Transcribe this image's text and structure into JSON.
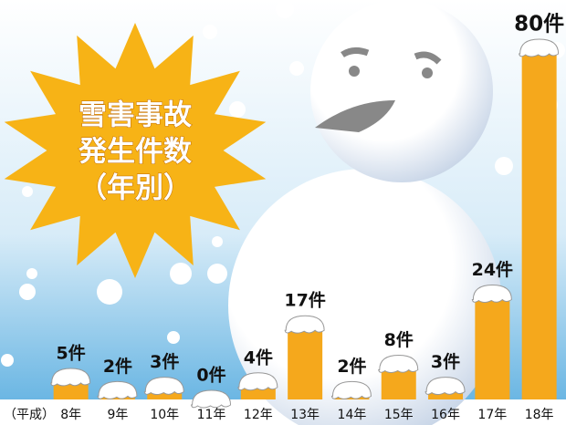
{
  "chart_data": {
    "type": "bar",
    "title_lines": [
      "雪害事故",
      "発生件数",
      "（年別）"
    ],
    "era_label": "（平成）",
    "categories": [
      "8年",
      "9年",
      "10年",
      "11年",
      "12年",
      "13年",
      "14年",
      "15年",
      "16年",
      "17年",
      "18年"
    ],
    "values": [
      5,
      2,
      3,
      0,
      4,
      17,
      2,
      8,
      3,
      24,
      80
    ],
    "value_labels": [
      "5件",
      "2件",
      "3件",
      "0件",
      "4件",
      "17件",
      "2件",
      "8件",
      "3件",
      "24件",
      "80件"
    ],
    "color": "#f5a81c"
  }
}
